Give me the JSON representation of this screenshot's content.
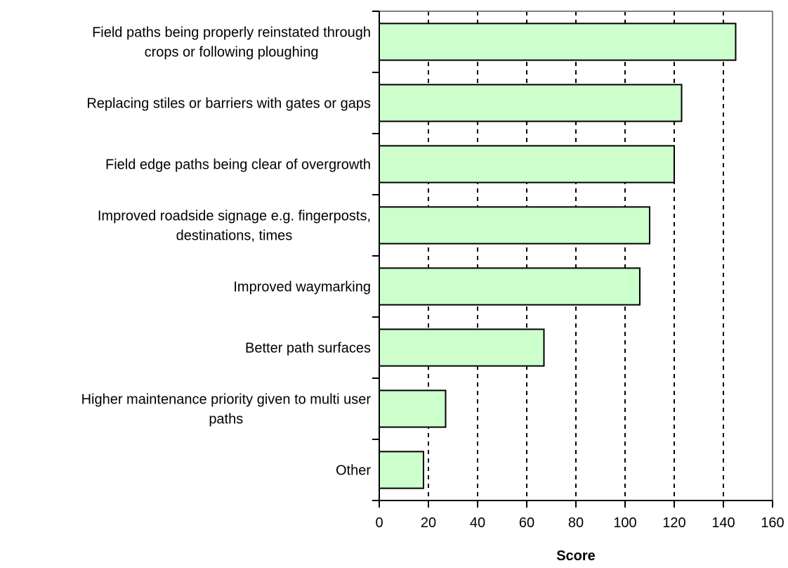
{
  "chart_data": {
    "type": "bar",
    "orientation": "horizontal",
    "title": "",
    "xlabel": "Score",
    "ylabel": "",
    "xlim": [
      0,
      160
    ],
    "x_ticks": [
      0,
      20,
      40,
      60,
      80,
      100,
      120,
      140,
      160
    ],
    "x_tick_labels": [
      "0",
      "20",
      "40",
      "60",
      "80",
      "100",
      "120",
      "140",
      "160"
    ],
    "grid": "vertical dashed",
    "legend": "none",
    "bar_color": "#ccffcc",
    "bar_edge_color": "#000000",
    "categories": [
      [
        "Field paths being properly reinstated through",
        "crops or following ploughing"
      ],
      [
        "Replacing stiles or barriers with gates or gaps"
      ],
      [
        "Field edge paths being clear of overgrowth"
      ],
      [
        "Improved roadside signage e.g. fingerposts,",
        "destinations, times"
      ],
      [
        "Improved waymarking"
      ],
      [
        "Better path surfaces"
      ],
      [
        "Higher maintenance priority given to multi user",
        "paths"
      ],
      [
        "Other"
      ]
    ],
    "values": [
      145,
      123,
      120,
      110,
      106,
      67,
      27,
      18
    ]
  }
}
